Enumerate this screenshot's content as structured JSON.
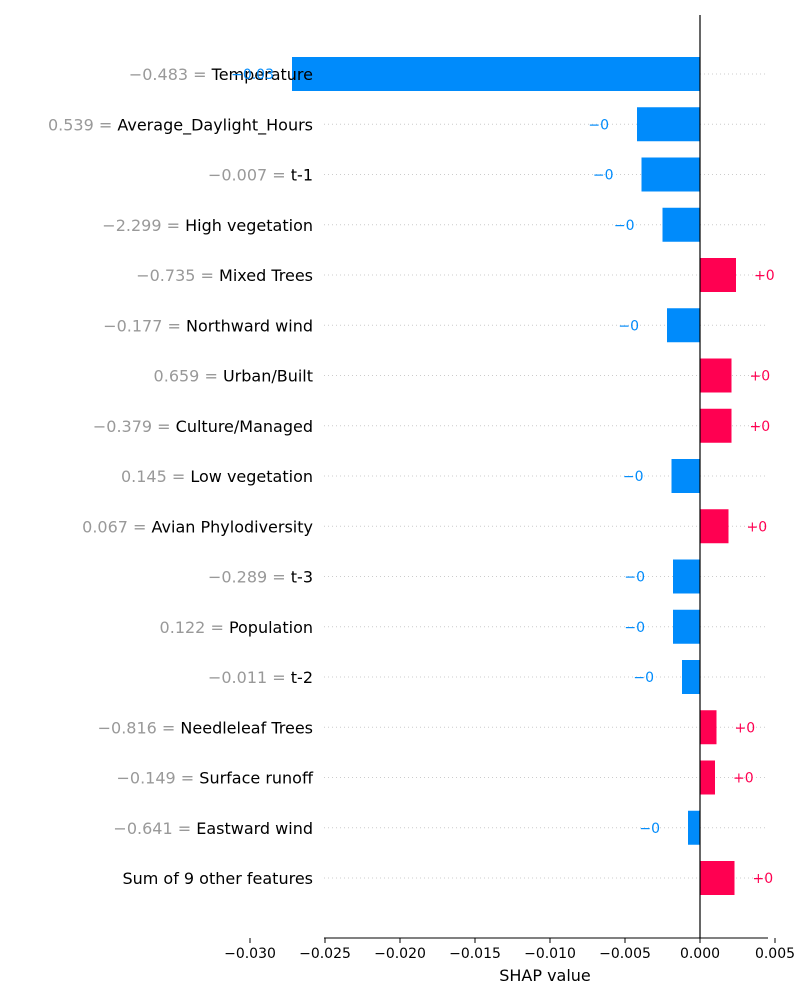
{
  "chart_data": {
    "type": "bar",
    "orientation": "horizontal",
    "xlabel": "SHAP value",
    "xlim": [
      -0.0305,
      0.0055
    ],
    "xticks": [
      {
        "value": -0.03,
        "label": "−0.030"
      },
      {
        "value": -0.025,
        "label": "−0.025"
      },
      {
        "value": -0.02,
        "label": "−0.020"
      },
      {
        "value": -0.015,
        "label": "−0.015"
      },
      {
        "value": -0.01,
        "label": "−0.010"
      },
      {
        "value": -0.005,
        "label": "−0.005"
      },
      {
        "value": 0.0,
        "label": "0.000"
      },
      {
        "value": 0.005,
        "label": "0.005"
      }
    ],
    "grid": "horizontal dotted",
    "colors": {
      "negative": "#008bfb",
      "positive": "#ff0051"
    },
    "features": [
      {
        "value_text": "−0.483 = ",
        "name": "Temperature",
        "shap": -0.0272,
        "bar_label": "−0.03"
      },
      {
        "value_text": "0.539 = ",
        "name": "Average_Daylight_Hours",
        "shap": -0.0042,
        "bar_label": "−0"
      },
      {
        "value_text": "−0.007 = ",
        "name": "t-1",
        "shap": -0.0039,
        "bar_label": "−0"
      },
      {
        "value_text": "−2.299 = ",
        "name": "High vegetation",
        "shap": -0.0025,
        "bar_label": "−0"
      },
      {
        "value_text": "−0.735 = ",
        "name": "Mixed Trees",
        "shap": 0.0024,
        "bar_label": "+0"
      },
      {
        "value_text": "−0.177 = ",
        "name": "Northward wind",
        "shap": -0.0022,
        "bar_label": "−0"
      },
      {
        "value_text": "0.659 = ",
        "name": "Urban/Built",
        "shap": 0.0021,
        "bar_label": "+0"
      },
      {
        "value_text": "−0.379 = ",
        "name": "Culture/Managed",
        "shap": 0.0021,
        "bar_label": "+0"
      },
      {
        "value_text": "0.145 = ",
        "name": "Low vegetation",
        "shap": -0.0019,
        "bar_label": "−0"
      },
      {
        "value_text": "0.067 = ",
        "name": "Avian Phylodiversity",
        "shap": 0.0019,
        "bar_label": "+0"
      },
      {
        "value_text": "−0.289 = ",
        "name": "t-3",
        "shap": -0.0018,
        "bar_label": "−0"
      },
      {
        "value_text": "0.122 = ",
        "name": "Population",
        "shap": -0.0018,
        "bar_label": "−0"
      },
      {
        "value_text": "−0.011 = ",
        "name": "t-2",
        "shap": -0.0012,
        "bar_label": "−0"
      },
      {
        "value_text": "−0.816 = ",
        "name": "Needleleaf Trees",
        "shap": 0.0011,
        "bar_label": "+0"
      },
      {
        "value_text": "−0.149 = ",
        "name": "Surface runoff",
        "shap": 0.001,
        "bar_label": "+0"
      },
      {
        "value_text": "−0.641 = ",
        "name": "Eastward wind",
        "shap": -0.0008,
        "bar_label": "−0"
      },
      {
        "value_text": "",
        "name": "Sum of 9 other features",
        "shap": 0.0023,
        "bar_label": "+0"
      }
    ]
  }
}
